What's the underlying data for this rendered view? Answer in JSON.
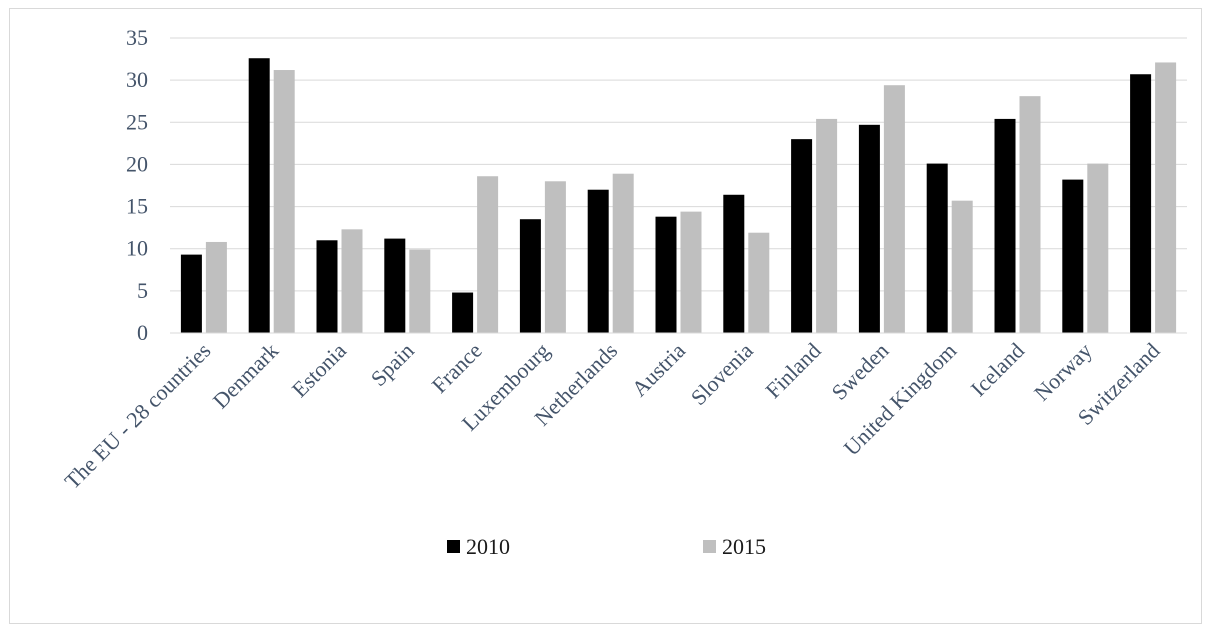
{
  "chart_data": {
    "type": "bar",
    "categories": [
      "The EU - 28 countries",
      "Denmark",
      "Estonia",
      "Spain",
      "France",
      "Luxembourg",
      "Netherlands",
      "Austria",
      "Slovenia",
      "Finland",
      "Sweden",
      "United Kingdom",
      "Iceland",
      "Norway",
      "Switzerland"
    ],
    "series": [
      {
        "name": "2010",
        "color": "#000000",
        "values": [
          9.3,
          32.6,
          11.0,
          11.2,
          4.8,
          13.5,
          17.0,
          13.8,
          16.4,
          23.0,
          24.7,
          20.1,
          25.4,
          18.2,
          30.7
        ]
      },
      {
        "name": "2015",
        "color": "#bfbfbf",
        "values": [
          10.8,
          31.2,
          12.3,
          9.9,
          18.6,
          18.0,
          18.9,
          14.4,
          11.9,
          25.4,
          29.4,
          15.7,
          28.1,
          20.1,
          32.1
        ]
      }
    ],
    "yticks": [
      "0",
      "5",
      "10",
      "15",
      "20",
      "25",
      "30",
      "35"
    ],
    "ylim": [
      0,
      35
    ],
    "grid": true,
    "legend_position": "bottom"
  }
}
